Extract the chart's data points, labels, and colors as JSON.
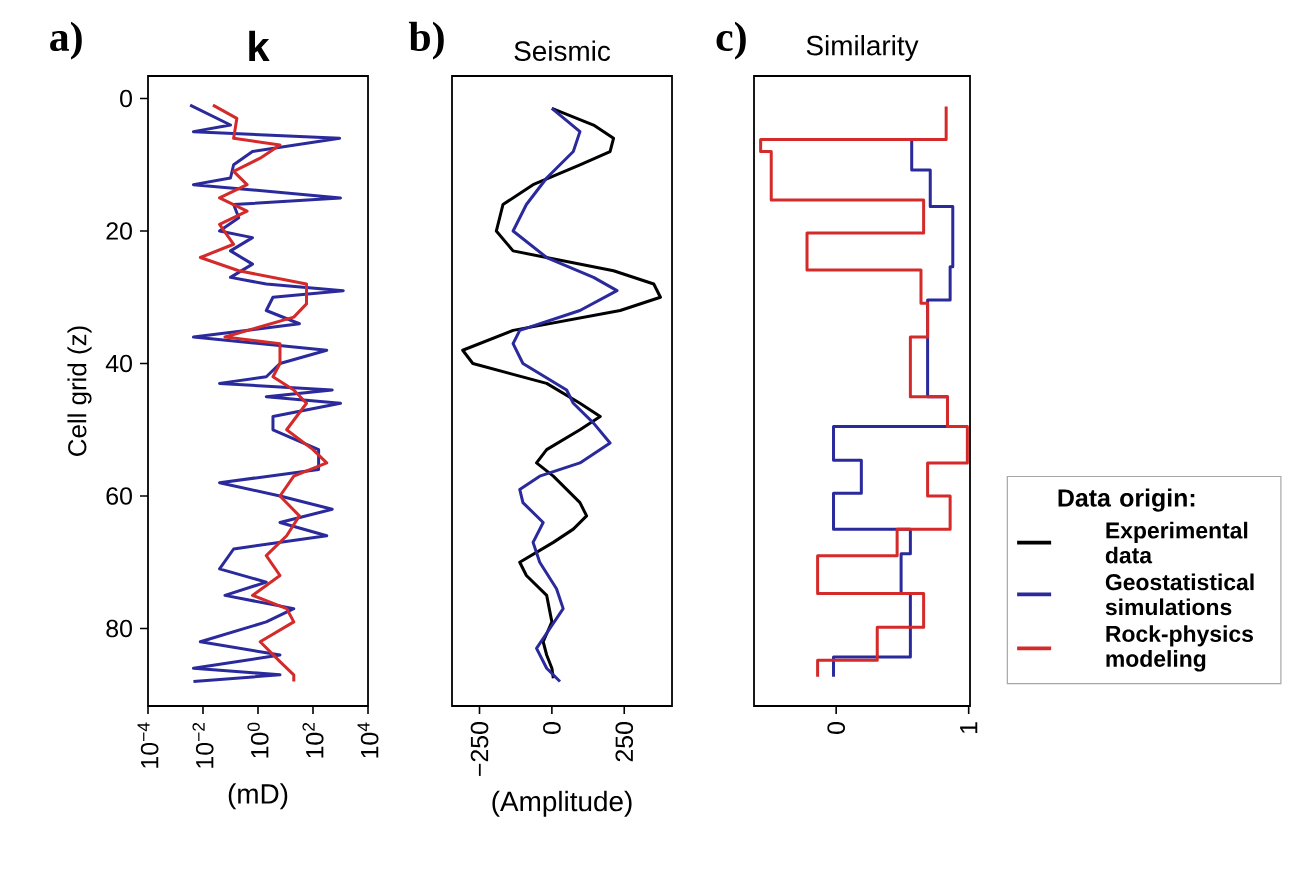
{
  "chart_data": [
    {
      "type": "line",
      "title": "k",
      "xlabel": "(mD)",
      "ylabel": "Cell grid (z)",
      "annotations": [
        "a)"
      ],
      "orientation": "horizontal",
      "log": "x",
      "xlim": [
        0.0001,
        10000
      ],
      "xticks": [
        {
          "value": 0.0001,
          "label": "10$^{−4}$"
        },
        {
          "value": 0.01,
          "label": "10$^{−2}$"
        },
        {
          "value": 1,
          "label": "10$^{0}$"
        },
        {
          "value": 100,
          "label": "10$^{2}$"
        },
        {
          "value": 10000,
          "label": "10$^{4}$"
        }
      ],
      "ylim": [
        91.7,
        -3.4
      ],
      "yticks": [
        0,
        20,
        40,
        60,
        80
      ],
      "series": [
        {
          "color": "#2a2a9c",
          "x": [
            1,
            4,
            5,
            6,
            8,
            10,
            12,
            13,
            15,
            16,
            18,
            20,
            21,
            23,
            25,
            27,
            28,
            29,
            30,
            32,
            34,
            36,
            38,
            40,
            42,
            43,
            44,
            45,
            46,
            48,
            50,
            53,
            56,
            58,
            60,
            62,
            64,
            66,
            68,
            71,
            73,
            75,
            77,
            79,
            82,
            84,
            86,
            87,
            88
          ],
          "values": [
            0.0034,
            0.1,
            0.0045,
            930,
            0.63,
            0.13,
            0.1,
            0.0045,
            1000,
            0.13,
            0.2,
            0.04,
            0.63,
            0.1,
            0.63,
            0.1,
            2,
            1260,
            3.5,
            2,
            32,
            0.0045,
            316,
            6.3,
            2,
            0.04,
            500,
            2,
            1000,
            3.5,
            3.5,
            160,
            160,
            0.04,
            6.3,
            500,
            6.3,
            316,
            0.13,
            0.04,
            2,
            0.063,
            20,
            2,
            0.008,
            6.3,
            0.0045,
            6.3,
            0.0045
          ]
        },
        {
          "color": "#d42a2a",
          "x": [
            1,
            3,
            6,
            7,
            9,
            11,
            13,
            15,
            17,
            19,
            22,
            24,
            26,
            28,
            31,
            33,
            36,
            37,
            40,
            42,
            44,
            46,
            50,
            53,
            55,
            57,
            60,
            63,
            66,
            69,
            72,
            75,
            77,
            79,
            82,
            85,
            87,
            88
          ],
          "values": [
            0.023,
            0.17,
            0.13,
            6.3,
            1.2,
            0.13,
            0.4,
            0.04,
            0.4,
            0.04,
            0.13,
            0.008,
            0.2,
            58,
            58,
            20,
            0.063,
            6.3,
            6.3,
            3.5,
            20,
            58,
            11,
            100,
            316,
            20,
            6.3,
            32,
            11,
            2,
            6.3,
            0.63,
            11,
            20,
            1.2,
            6.3,
            20,
            20
          ]
        }
      ]
    },
    {
      "type": "line",
      "title": "Seismic",
      "xlabel": "(Amplitude)",
      "annotations": [
        "b)"
      ],
      "orientation": "horizontal",
      "xlim": [
        -345,
        415
      ],
      "xticks": [
        {
          "value": -250,
          "label": "−250"
        },
        0,
        250
      ],
      "ylim": [
        91.7,
        -3.4
      ],
      "yticks": [
        0,
        20,
        40,
        60,
        80
      ],
      "tick_labels": "x",
      "series": [
        {
          "name": "Experimental data",
          "color": "#000000",
          "x": [
            1.5,
            4,
            6,
            8,
            10,
            13,
            16,
            20,
            23,
            26,
            28,
            30,
            32,
            35,
            38,
            40,
            43,
            46,
            48,
            50,
            53,
            55,
            57,
            59,
            61,
            63,
            65,
            67,
            70,
            72,
            75,
            79,
            82,
            84,
            86,
            87.5
          ],
          "values": [
            0,
            144,
            213,
            201,
            97,
            -65,
            -169,
            -192,
            -134,
            213,
            352,
            375,
            236,
            -134,
            -308,
            -273,
            -18,
            97,
            167,
            97,
            -18,
            -53,
            5,
            51,
            97,
            120,
            74,
            5,
            -111,
            -88,
            -18,
            0,
            -30,
            -18,
            0,
            5
          ]
        },
        {
          "color": "#2a2a9c",
          "x": [
            1.5,
            5,
            8,
            12,
            16,
            20,
            24,
            27,
            29,
            32,
            35,
            37,
            40,
            44,
            46,
            49,
            52,
            55,
            57,
            59,
            61,
            64,
            67,
            70,
            74,
            77,
            80,
            83,
            86,
            88
          ],
          "values": [
            0,
            97,
            74,
            -18,
            -88,
            -134,
            -18,
            144,
            225,
            97,
            -111,
            -134,
            -100,
            51,
            74,
            144,
            201,
            97,
            -42,
            -111,
            -100,
            -30,
            -65,
            -42,
            16,
            39,
            -7,
            -53,
            -18,
            28
          ]
        }
      ]
    },
    {
      "type": "step",
      "title": "Similarity",
      "annotations": [
        "c)"
      ],
      "orientation": "horizontal",
      "xlim": [
        -0.62,
        1.01
      ],
      "xticks": [
        0,
        1
      ],
      "ylim": [
        91.7,
        -3.4
      ],
      "yticks": [
        0,
        20,
        40,
        60,
        80
      ],
      "tick_labels": "x",
      "legend": "right",
      "legend_title": "Data origin:",
      "series": [
        {
          "name": "Geostatistical simulations",
          "color": "#2a2a9c",
          "x": [
            6.2,
            10.8,
            16.3,
            25.4,
            30.4,
            45,
            49.5,
            54.6,
            59.6,
            65,
            68.7,
            74.7,
            84.3,
            87.3
          ],
          "values": [
            0.57,
            0.71,
            0.88,
            0.86,
            0.69,
            0.84,
            -0.02,
            0.19,
            -0.02,
            0.56,
            0.49,
            0.56,
            -0.02,
            -0.02
          ]
        },
        {
          "name": "Rock-physics modeling",
          "color": "#d42a2a",
          "x": [
            1.2,
            6.2,
            8,
            15.3,
            20.3,
            25.9,
            30.9,
            36,
            45,
            49.5,
            55,
            60,
            65,
            69,
            74.7,
            79.8,
            84.8,
            87.3
          ],
          "values": [
            0.83,
            -0.57,
            -0.49,
            0.66,
            -0.22,
            0.64,
            0.69,
            0.56,
            0.84,
            0.99,
            0.69,
            0.86,
            0.46,
            -0.14,
            0.66,
            0.31,
            -0.14,
            -0.14
          ]
        }
      ]
    }
  ]
}
